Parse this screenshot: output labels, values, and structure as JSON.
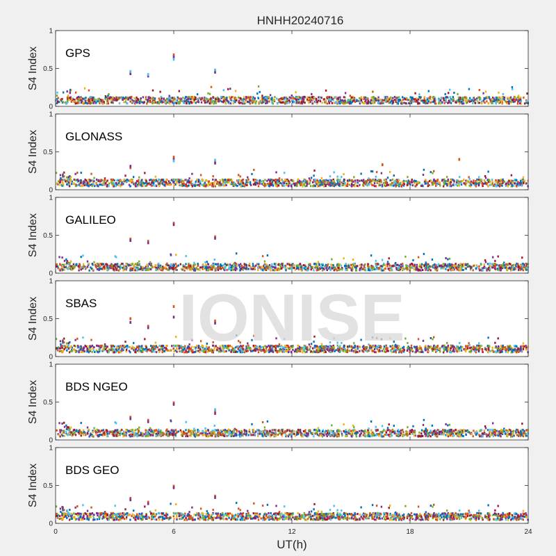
{
  "chart_data": {
    "type": "scatter",
    "title": "HNHH20240716",
    "xlabel": "UT(h)",
    "ylabel": "S4 Index",
    "xlim": [
      0,
      24
    ],
    "ylim": [
      0,
      1
    ],
    "x_ticks": [
      "0",
      "6",
      "12",
      "18",
      "24"
    ],
    "y_ticks": [
      "0",
      "0.5",
      "1"
    ],
    "grid": false,
    "watermark": "IONISE",
    "colors": [
      "#0072BD",
      "#D95319",
      "#EDB120",
      "#7E2F8E",
      "#77AC30",
      "#4DBEEE",
      "#A2142F"
    ],
    "panels": [
      {
        "label": "GPS",
        "baseline": 0.08,
        "spikes": [
          {
            "x": 3.8,
            "y": [
              0.45,
              0.43,
              0.46
            ]
          },
          {
            "x": 4.7,
            "y": [
              0.41,
              0.4,
              0.42
            ]
          },
          {
            "x": 6.0,
            "y": [
              0.68,
              0.65,
              0.62
            ]
          },
          {
            "x": 8.1,
            "y": [
              0.47,
              0.45,
              0.48
            ]
          }
        ]
      },
      {
        "label": "GLONASS",
        "baseline": 0.09,
        "spikes": [
          {
            "x": 3.8,
            "y": [
              0.29,
              0.31
            ]
          },
          {
            "x": 6.0,
            "y": [
              0.43,
              0.4,
              0.38
            ]
          },
          {
            "x": 8.1,
            "y": [
              0.37,
              0.35,
              0.39
            ]
          },
          {
            "x": 16.6,
            "y": [
              0.33
            ]
          },
          {
            "x": 20.5,
            "y": [
              0.4
            ]
          }
        ]
      },
      {
        "label": "GALILEO",
        "baseline": 0.08,
        "spikes": [
          {
            "x": 3.8,
            "y": [
              0.45,
              0.43
            ]
          },
          {
            "x": 4.7,
            "y": [
              0.42,
              0.4
            ]
          },
          {
            "x": 6.0,
            "y": [
              0.66,
              0.64
            ]
          },
          {
            "x": 8.1,
            "y": [
              0.48,
              0.46
            ]
          }
        ]
      },
      {
        "label": "SBAS",
        "baseline": 0.1,
        "spikes": [
          {
            "x": 3.8,
            "y": [
              0.5,
              0.45
            ]
          },
          {
            "x": 4.7,
            "y": [
              0.4,
              0.38
            ]
          },
          {
            "x": 6.0,
            "y": [
              0.66,
              0.52
            ]
          },
          {
            "x": 8.1,
            "y": [
              0.47,
              0.44
            ]
          }
        ]
      },
      {
        "label": "BDS NGEO",
        "baseline": 0.09,
        "spikes": [
          {
            "x": 3.8,
            "y": [
              0.3,
              0.28
            ]
          },
          {
            "x": 4.7,
            "y": [
              0.26,
              0.24
            ]
          },
          {
            "x": 6.0,
            "y": [
              0.49,
              0.47
            ]
          },
          {
            "x": 8.1,
            "y": [
              0.38,
              0.35,
              0.4
            ]
          }
        ]
      },
      {
        "label": "BDS GEO",
        "baseline": 0.09,
        "spikes": [
          {
            "x": 3.8,
            "y": [
              0.33,
              0.31
            ]
          },
          {
            "x": 4.7,
            "y": [
              0.28,
              0.26
            ]
          },
          {
            "x": 6.0,
            "y": [
              0.49,
              0.47
            ]
          },
          {
            "x": 8.1,
            "y": [
              0.36,
              0.34
            ]
          }
        ]
      }
    ]
  }
}
